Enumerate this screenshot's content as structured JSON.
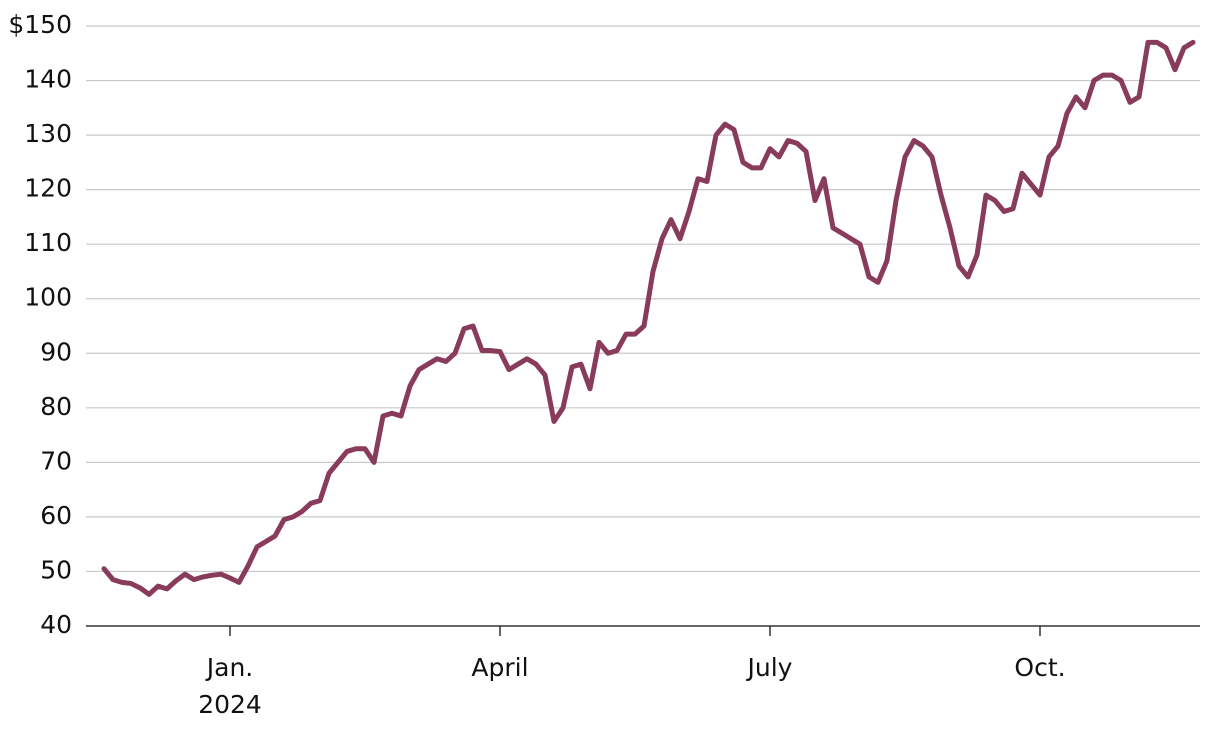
{
  "chart_data": {
    "type": "line",
    "categories": [
      null,
      null,
      null,
      null,
      null,
      null,
      null,
      null,
      null,
      null,
      null,
      null,
      null,
      null,
      "Jan.",
      null,
      null,
      null,
      null,
      null,
      null,
      null,
      null,
      null,
      null,
      null,
      null,
      null,
      null,
      null,
      null,
      null,
      null,
      null,
      null,
      null,
      null,
      null,
      null,
      null,
      null,
      null,
      null,
      null,
      "April",
      null,
      null,
      null,
      null,
      null,
      null,
      null,
      null,
      null,
      null,
      null,
      null,
      null,
      null,
      null,
      null,
      null,
      null,
      null,
      null,
      null,
      null,
      null,
      null,
      null,
      null,
      null,
      null,
      null,
      "July",
      null,
      null,
      null,
      null,
      null,
      null,
      null,
      null,
      null,
      null,
      null,
      null,
      null,
      null,
      null,
      null,
      null,
      null,
      null,
      null,
      null,
      null,
      null,
      null,
      null,
      null,
      null,
      null,
      null,
      "Oct.",
      null,
      null,
      null,
      null,
      null,
      null,
      null,
      null,
      null,
      null,
      null,
      null,
      null,
      null,
      null,
      null,
      null
    ],
    "year_label": "2024",
    "series": [
      {
        "color": "#893b5c",
        "values": [
          50.5,
          48.5,
          48,
          47.8,
          47,
          45.8,
          47.3,
          46.8,
          48.3,
          49.5,
          48.5,
          49,
          49.3,
          49.5,
          48.8,
          48,
          51,
          54.5,
          55.5,
          56.5,
          59.5,
          60,
          61,
          62.5,
          63,
          68,
          70,
          72,
          72.5,
          72.5,
          70,
          78.5,
          79,
          78.5,
          84,
          87,
          88,
          89,
          88.5,
          90,
          94.5,
          95,
          90.5,
          90.5,
          90.3,
          87,
          88,
          89,
          88,
          86,
          77.5,
          80,
          87.5,
          88,
          83.5,
          92,
          90,
          90.5,
          93.5,
          93.5,
          95,
          105,
          111,
          114.5,
          111,
          116,
          122,
          121.5,
          130,
          132,
          131,
          125,
          124,
          124,
          127.5,
          126,
          129,
          128.5,
          127,
          118,
          122,
          113,
          112,
          111,
          110,
          104,
          103,
          107,
          118,
          126,
          129,
          128,
          126,
          119,
          113,
          106,
          104,
          108,
          119,
          118,
          116,
          116.5,
          123,
          121,
          119,
          126,
          128,
          134,
          137,
          135,
          140,
          141,
          141,
          140,
          136,
          137,
          147,
          147,
          146,
          142,
          146,
          147
        ]
      }
    ],
    "ylim": [
      40,
      150
    ],
    "yticks": [
      40,
      50,
      60,
      70,
      80,
      90,
      100,
      110,
      120,
      130,
      140,
      {
        "value": 150,
        "label": "$150"
      }
    ],
    "grid": true
  }
}
